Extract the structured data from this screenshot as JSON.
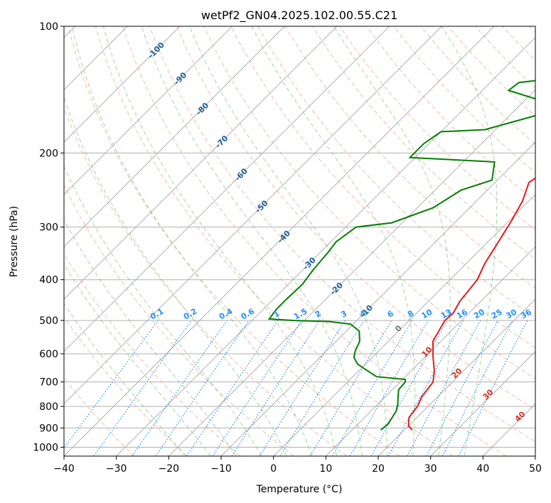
{
  "chart_data": {
    "type": "line",
    "title": "wetPf2_GN04.2025.102.00.55.C21",
    "xlabel": "Temperature (°C)",
    "ylabel": "Pressure (hPa)",
    "xlim": [
      -40,
      50
    ],
    "ylim": [
      1050,
      100
    ],
    "y_scale": "log",
    "grid": true,
    "x_ticks": [
      "−40",
      "−30",
      "−20",
      "−10",
      "0",
      "10",
      "20",
      "30",
      "40",
      "50"
    ],
    "y_ticks": [
      {
        "p": 100,
        "label": "100"
      },
      {
        "p": 200,
        "label": "200"
      },
      {
        "p": 300,
        "label": "300"
      },
      {
        "p": 400,
        "label": "400"
      },
      {
        "p": 500,
        "label": "500"
      },
      {
        "p": 600,
        "label": "600"
      },
      {
        "p": 700,
        "label": "700"
      },
      {
        "p": 800,
        "label": "800"
      },
      {
        "p": 900,
        "label": "900"
      },
      {
        "p": 1000,
        "label": "1000"
      }
    ],
    "series": [
      {
        "color": "#e41a1c",
        "points": [
          [
            21.5,
            910
          ],
          [
            20,
            890
          ],
          [
            18.5,
            850
          ],
          [
            18,
            800
          ],
          [
            17,
            760
          ],
          [
            16.3,
            700
          ],
          [
            14.5,
            660
          ],
          [
            11.5,
            610
          ],
          [
            8.5,
            560
          ],
          [
            6.8,
            500
          ],
          [
            7,
            480
          ],
          [
            6,
            450
          ],
          [
            5.2,
            400
          ],
          [
            3.5,
            365
          ],
          [
            2.2,
            330
          ],
          [
            0.5,
            290
          ],
          [
            -1.2,
            260
          ],
          [
            -3.5,
            235
          ],
          [
            -2.5,
            222
          ],
          [
            3.5,
            210
          ],
          [
            6.5,
            195
          ],
          [
            7.5,
            180
          ],
          [
            8,
            168
          ],
          [
            9,
            155
          ],
          [
            12,
            145
          ],
          [
            13.5,
            137
          ],
          [
            14,
            128
          ],
          [
            15.5,
            118
          ],
          [
            17.8,
            110
          ],
          [
            20,
            105
          ],
          [
            21,
            101
          ],
          [
            21.2,
            100
          ]
        ]
      },
      {
        "color": "#008000",
        "points": [
          [
            15.5,
            910
          ],
          [
            15.7,
            880
          ],
          [
            15.3,
            850
          ],
          [
            14.8,
            820
          ],
          [
            13.8,
            790
          ],
          [
            12.5,
            760
          ],
          [
            11.2,
            730
          ],
          [
            11,
            700
          ],
          [
            10.5,
            690
          ],
          [
            4.5,
            680
          ],
          [
            -1.5,
            635
          ],
          [
            -3.5,
            612
          ],
          [
            -4.5,
            590
          ],
          [
            -5.5,
            560
          ],
          [
            -7.5,
            530
          ],
          [
            -10.5,
            510
          ],
          [
            -15,
            503
          ],
          [
            -22,
            500
          ],
          [
            -27,
            496
          ],
          [
            -27.5,
            470
          ],
          [
            -27.5,
            445
          ],
          [
            -27.3,
            410
          ],
          [
            -28,
            380
          ],
          [
            -28.5,
            345
          ],
          [
            -29,
            325
          ],
          [
            -28,
            300
          ],
          [
            -22,
            293
          ],
          [
            -17,
            270
          ],
          [
            -15,
            245
          ],
          [
            -11,
            232
          ],
          [
            -14,
            210
          ],
          [
            -24,
            207
          ],
          [
            -31,
            205
          ],
          [
            -31,
            190
          ],
          [
            -30,
            178
          ],
          [
            -22,
            176
          ],
          [
            -15,
            163
          ],
          [
            -17,
            150
          ],
          [
            -25,
            142
          ],
          [
            -24.5,
            136
          ],
          [
            -12,
            130
          ],
          [
            -7,
            120
          ],
          [
            -5,
            110
          ],
          [
            -2.5,
            104
          ],
          [
            -1,
            100
          ]
        ]
      }
    ],
    "background_lines": {
      "dry_adiabats_theta_C": [
        -30,
        -20,
        -10,
        0,
        10,
        20,
        30,
        40,
        50,
        60,
        70,
        80,
        90,
        100,
        110,
        120,
        130,
        140,
        150,
        160,
        170,
        180,
        190,
        200
      ],
      "moist_adiabats_C": [
        -20,
        -15,
        -10,
        -5,
        0,
        5,
        10,
        15,
        20,
        25,
        30,
        35
      ],
      "mixing_ratios_gkg": [
        0.1,
        0.2,
        0.4,
        0.6,
        1,
        1.5,
        2,
        3,
        4,
        6,
        8,
        10,
        13,
        16,
        20,
        25,
        30,
        36
      ],
      "mixing_ratio_labels": [
        "0.1",
        "0.2",
        "0.4",
        "0.6",
        "1",
        "1.5",
        "2",
        "3",
        "4",
        "6",
        "8",
        "10",
        "13",
        "16",
        "20",
        "25",
        "30",
        "36"
      ],
      "isotherm_labels": [
        "-100",
        "-90",
        "-80",
        "-70",
        "-60",
        "-50",
        "-40",
        "-30",
        "-20",
        "-10"
      ],
      "thetae_labels": [
        "0",
        "10",
        "20",
        "30",
        "40"
      ]
    },
    "colors": {
      "temperature": "#e41a1c",
      "dewpoint": "#008000",
      "isotherm_label": "#1f5f9f",
      "mixing_ratio": "#1e90ff",
      "dry_adiabat": "#f4a582",
      "moist_adiabat": "#66bb66",
      "thetae": "#d7301f",
      "grid": "#b0b0b0"
    }
  }
}
